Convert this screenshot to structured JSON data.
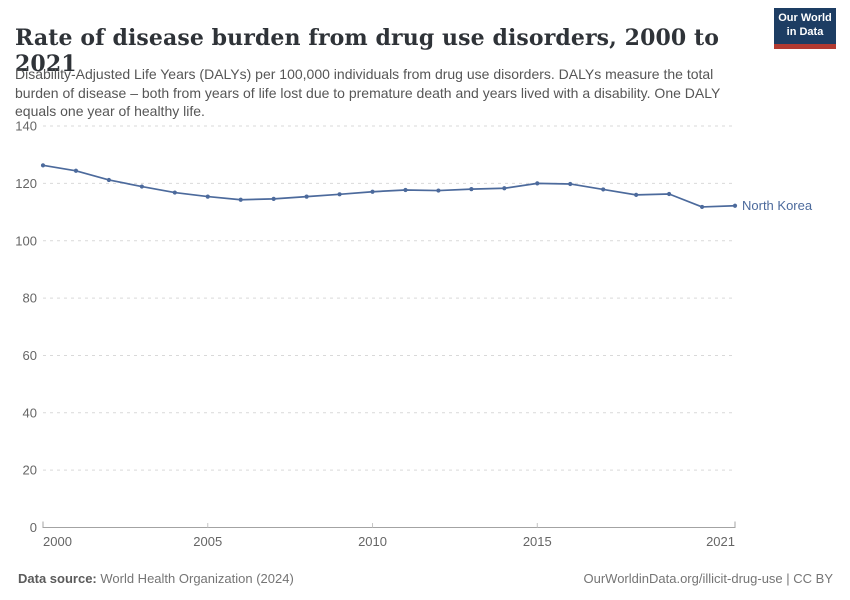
{
  "header": {
    "title": "Rate of disease burden from drug use disorders, 2000 to 2021",
    "subtitle": "Disability-Adjusted Life Years (DALYs) per 100,000 individuals from drug use disorders. DALYs measure the total burden of disease – both from years of life lost due to premature death and years lived with a disability. One DALY equals one year of healthy life.",
    "logo": {
      "line1": "Our World",
      "line2": "in Data"
    }
  },
  "chart_data": {
    "type": "line",
    "title": "Rate of disease burden from drug use disorders, 2000 to 2021",
    "xlabel": "",
    "ylabel": "DALYs per 100,000 individuals",
    "x": [
      2000,
      2001,
      2002,
      2003,
      2004,
      2005,
      2006,
      2007,
      2008,
      2009,
      2010,
      2011,
      2012,
      2013,
      2014,
      2015,
      2016,
      2017,
      2018,
      2019,
      2020,
      2021
    ],
    "series": [
      {
        "name": "North Korea",
        "color": "#4c6a9c",
        "values": [
          126.3,
          124.4,
          121.2,
          118.9,
          116.8,
          115.4,
          114.3,
          114.6,
          115.4,
          116.2,
          117.1,
          117.7,
          117.5,
          118.0,
          118.3,
          120.0,
          119.8,
          117.9,
          116.0,
          116.3,
          111.8,
          112.2
        ]
      }
    ],
    "ylim": [
      0,
      140
    ],
    "yticks": [
      0,
      20,
      40,
      60,
      80,
      100,
      120,
      140
    ],
    "xticks": [
      2000,
      2005,
      2010,
      2015,
      2021
    ],
    "grid": "horizontal-dashed",
    "legend_position": "end-of-line",
    "colors": {
      "gridline": "#d9d9d9",
      "axis": "#a3a3a3",
      "tick_label": "#666666"
    }
  },
  "footer": {
    "source_label": "Data source:",
    "source_value": " World Health Organization (2024)",
    "credit": "OurWorldinData.org/illicit-drug-use | CC BY"
  }
}
